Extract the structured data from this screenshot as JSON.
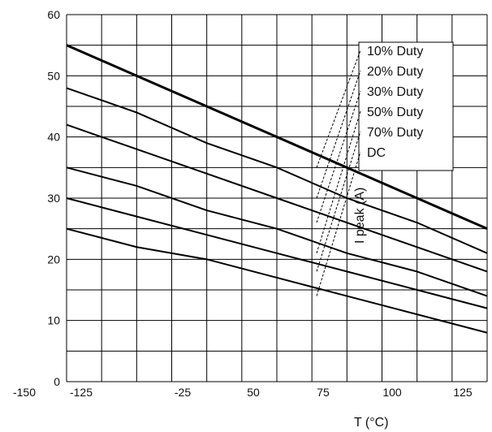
{
  "chart_data": {
    "type": "line",
    "xlabel": "T (°C)",
    "ylabel": "I peak (A)",
    "x_ticks": [
      -150,
      -125,
      -25,
      50,
      75,
      100,
      125
    ],
    "y_ticks": [
      0,
      10,
      20,
      30,
      40,
      50,
      60
    ],
    "xlim": [
      -150,
      150
    ],
    "ylim": [
      0,
      60
    ],
    "grid": true,
    "legend_position": "top-right",
    "series": [
      {
        "name": "10% Duty",
        "x": [
          -150,
          -100,
          -50,
          0,
          50,
          100,
          150
        ],
        "y": [
          55,
          50,
          45,
          40,
          35,
          30,
          25
        ]
      },
      {
        "name": "20% Duty",
        "x": [
          -150,
          -100,
          -50,
          0,
          50,
          100,
          150
        ],
        "y": [
          48,
          44,
          39,
          35,
          30,
          26,
          21
        ]
      },
      {
        "name": "30% Duty",
        "x": [
          -150,
          -100,
          -50,
          0,
          50,
          100,
          150
        ],
        "y": [
          42,
          38,
          34,
          30,
          26,
          22,
          18
        ]
      },
      {
        "name": "50% Duty",
        "x": [
          -150,
          -100,
          -50,
          0,
          50,
          100,
          150
        ],
        "y": [
          35,
          32,
          28,
          25,
          21,
          18,
          14
        ]
      },
      {
        "name": "70% Duty",
        "x": [
          -150,
          -100,
          -50,
          0,
          50,
          100,
          150
        ],
        "y": [
          30,
          27,
          24,
          21,
          18,
          15,
          12
        ]
      },
      {
        "name": "DC",
        "x": [
          -150,
          -100,
          -50,
          0,
          50,
          100,
          150
        ],
        "y": [
          25,
          22,
          20,
          17,
          14,
          11,
          8
        ]
      }
    ],
    "colors": {
      "line": "#000000",
      "grid": "#000000"
    }
  }
}
